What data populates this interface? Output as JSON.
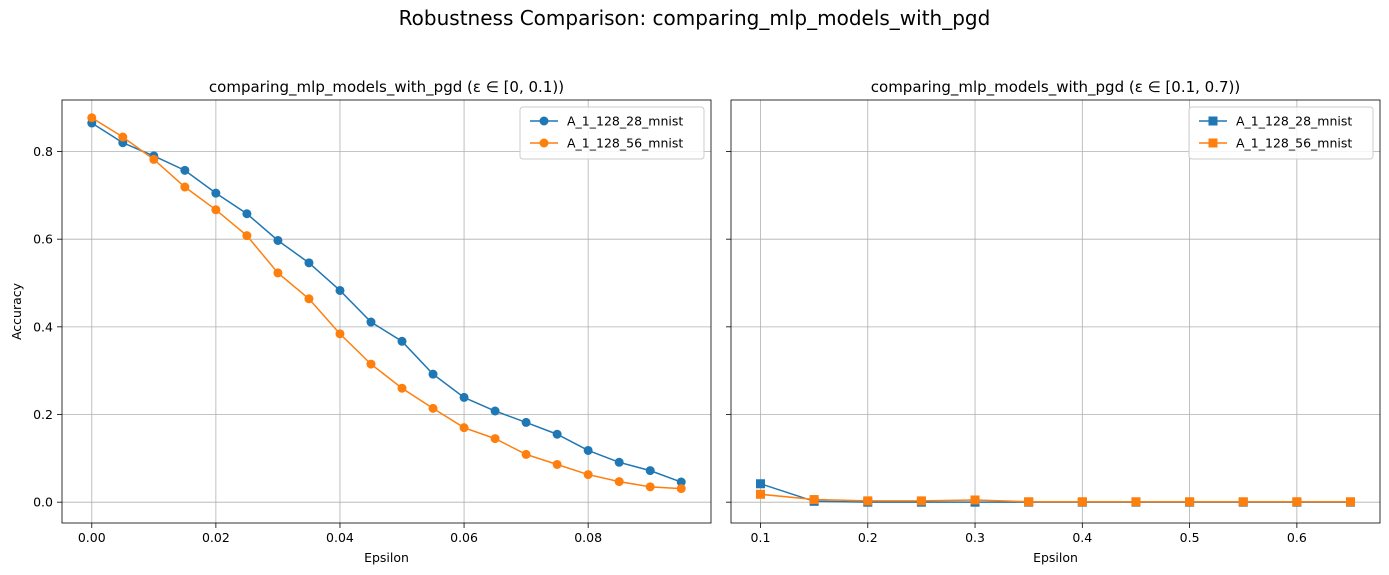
{
  "figure": {
    "title": "Robustness Comparison: comparing_mlp_models_with_pgd"
  },
  "colors": {
    "series_1": "#1f77b4",
    "series_2": "#ff7f0e",
    "grid": "#b0b0b0",
    "axes": "#000000"
  },
  "chart_data": [
    {
      "type": "line",
      "title": "comparing_mlp_models_with_pgd (ε ∈ [0, 0.1))",
      "xlabel": "Epsilon",
      "ylabel": "Accuracy",
      "xlim": [
        -0.0048,
        0.0998
      ],
      "ylim": [
        -0.0475,
        0.9175
      ],
      "xticks": [
        0.0,
        0.02,
        0.04,
        0.06,
        0.08
      ],
      "xtick_labels": [
        "0.00",
        "0.02",
        "0.04",
        "0.06",
        "0.08"
      ],
      "yticks": [
        0.0,
        0.2,
        0.4,
        0.6,
        0.8
      ],
      "ytick_labels": [
        "0.0",
        "0.2",
        "0.4",
        "0.6",
        "0.8"
      ],
      "grid": true,
      "legend_position": "top-right",
      "marker": "circle",
      "x": [
        0.0,
        0.005,
        0.01,
        0.015,
        0.02,
        0.025,
        0.03,
        0.035,
        0.04,
        0.045,
        0.05,
        0.055,
        0.06,
        0.065,
        0.07,
        0.075,
        0.08,
        0.085,
        0.09,
        0.095
      ],
      "series": [
        {
          "name": "A_1_128_28_mnist",
          "color": "#1f77b4",
          "values": [
            0.865,
            0.82,
            0.79,
            0.757,
            0.705,
            0.658,
            0.597,
            0.546,
            0.483,
            0.411,
            0.367,
            0.292,
            0.239,
            0.208,
            0.182,
            0.155,
            0.118,
            0.091,
            0.072,
            0.046
          ]
        },
        {
          "name": "A_1_128_56_mnist",
          "color": "#ff7f0e",
          "values": [
            0.877,
            0.833,
            0.782,
            0.719,
            0.667,
            0.608,
            0.523,
            0.464,
            0.384,
            0.315,
            0.26,
            0.214,
            0.17,
            0.145,
            0.109,
            0.086,
            0.063,
            0.047,
            0.035,
            0.031
          ]
        }
      ]
    },
    {
      "type": "line",
      "title": "comparing_mlp_models_with_pgd (ε ∈ [0.1, 0.7))",
      "xlabel": "Epsilon",
      "ylabel": "",
      "xlim": [
        0.0725,
        0.6775
      ],
      "ylim": [
        -0.0475,
        0.9175
      ],
      "xticks": [
        0.1,
        0.2,
        0.3,
        0.4,
        0.5,
        0.6
      ],
      "xtick_labels": [
        "0.1",
        "0.2",
        "0.3",
        "0.4",
        "0.5",
        "0.6"
      ],
      "yticks": [
        0.0,
        0.2,
        0.4,
        0.6,
        0.8
      ],
      "ytick_labels": [],
      "grid": true,
      "legend_position": "top-right",
      "marker": "square",
      "x": [
        0.1,
        0.15,
        0.2,
        0.25,
        0.3,
        0.35,
        0.4,
        0.45,
        0.5,
        0.55,
        0.6,
        0.65
      ],
      "series": [
        {
          "name": "A_1_128_28_mnist",
          "color": "#1f77b4",
          "values": [
            0.042,
            0.002,
            0.0,
            0.0,
            0.0,
            0.0,
            0.0,
            0.0,
            0.0,
            0.0,
            0.0,
            0.0
          ]
        },
        {
          "name": "A_1_128_56_mnist",
          "color": "#ff7f0e",
          "values": [
            0.018,
            0.006,
            0.003,
            0.003,
            0.005,
            0.001,
            0.001,
            0.001,
            0.001,
            0.001,
            0.001,
            0.001
          ]
        }
      ]
    }
  ]
}
